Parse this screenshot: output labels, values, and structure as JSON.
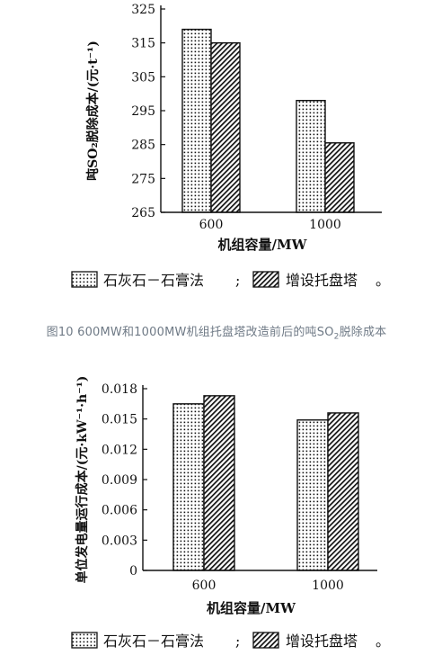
{
  "figure_caption": {
    "prefix": "图10   600MW和1000MW机组托盘塔改造前后的吨SO",
    "sub": "2",
    "suffix": "脱除成本"
  },
  "chart_data": [
    {
      "type": "bar",
      "ylabel": "吨SO₂脱除成本/(元·t⁻¹)",
      "xlabel": "机组容量/MW",
      "categories": [
        "600",
        "1000"
      ],
      "series": [
        {
          "name": "石灰石－石膏法",
          "values": [
            319,
            298
          ]
        },
        {
          "name": "增设托盘塔",
          "values": [
            315,
            285.5
          ]
        }
      ],
      "ylim": [
        265,
        325
      ],
      "yticks": [
        265,
        275,
        285,
        295,
        305,
        315,
        325
      ],
      "legend_suffix": "。",
      "legend_sep": ";",
      "grid": false,
      "legend_position": "bottom"
    },
    {
      "type": "bar",
      "ylabel": "单位发电量运行成本/(元·kW⁻¹·h⁻¹)",
      "xlabel": "机组容量/MW",
      "categories": [
        "600",
        "1000"
      ],
      "series": [
        {
          "name": "石灰石－石膏法",
          "values": [
            0.0165,
            0.0149
          ]
        },
        {
          "name": "增设托盘塔",
          "values": [
            0.0173,
            0.0156
          ]
        }
      ],
      "ylim": [
        0,
        0.018
      ],
      "yticks": [
        "0",
        "0.003",
        "0.006",
        "0.009",
        "0.012",
        "0.015",
        "0.018"
      ],
      "legend_suffix": "。",
      "legend_sep": ";",
      "grid": false,
      "legend_position": "bottom"
    }
  ],
  "patterns": {
    "series_0": "dots",
    "series_1": "diagonal-hatch"
  },
  "colors": {
    "ink": "#111111",
    "caption": "#6f7a86",
    "background": "#ffffff"
  }
}
